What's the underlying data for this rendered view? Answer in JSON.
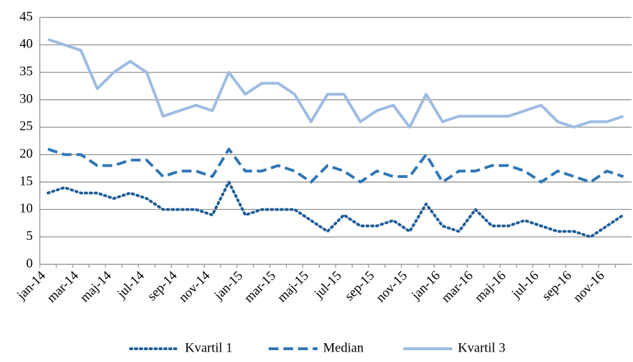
{
  "chart_data": {
    "type": "line",
    "categories": [
      "jan-14",
      null,
      "mar-14",
      null,
      "maj-14",
      null,
      "jul-14",
      null,
      "sep-14",
      null,
      "nov-14",
      null,
      "jan-15",
      null,
      "mar-15",
      null,
      "maj-15",
      null,
      "jul-15",
      null,
      "sep-15",
      null,
      "nov-15",
      null,
      "jan-16",
      null,
      "mar-16",
      null,
      "maj-16",
      null,
      "jul-16",
      null,
      "sep-16",
      null,
      "nov-16",
      null
    ],
    "series": [
      {
        "name": "Kvartil 1",
        "color": "#1f5c99",
        "dash": "dotted",
        "values": [
          13,
          14,
          13,
          13,
          12,
          13,
          12,
          10,
          10,
          10,
          9,
          15,
          9,
          10,
          10,
          10,
          8,
          6,
          9,
          7,
          7,
          8,
          6,
          11,
          7,
          6,
          10,
          7,
          7,
          8,
          7,
          6,
          6,
          5,
          7,
          9
        ]
      },
      {
        "name": "Median",
        "color": "#2e75b6",
        "dash": "dashed",
        "values": [
          21,
          20,
          20,
          18,
          18,
          19,
          19,
          16,
          17,
          17,
          16,
          21,
          17,
          17,
          18,
          17,
          15,
          18,
          17,
          15,
          17,
          16,
          16,
          20,
          15,
          17,
          17,
          18,
          18,
          17,
          15,
          17,
          16,
          15,
          17,
          16
        ]
      },
      {
        "name": "Kvartil 3",
        "color": "#9dbbe3",
        "dash": "solid",
        "values": [
          41,
          40,
          39,
          32,
          35,
          37,
          35,
          27,
          28,
          29,
          28,
          35,
          31,
          33,
          33,
          31,
          26,
          31,
          31,
          26,
          28,
          29,
          25,
          31,
          26,
          27,
          27,
          27,
          27,
          28,
          29,
          26,
          25,
          26,
          26,
          27
        ]
      }
    ],
    "ylim": [
      0,
      45
    ],
    "yticks": [
      0,
      5,
      10,
      15,
      20,
      25,
      30,
      35,
      40,
      45
    ],
    "grid": true,
    "legend": "bottom"
  }
}
